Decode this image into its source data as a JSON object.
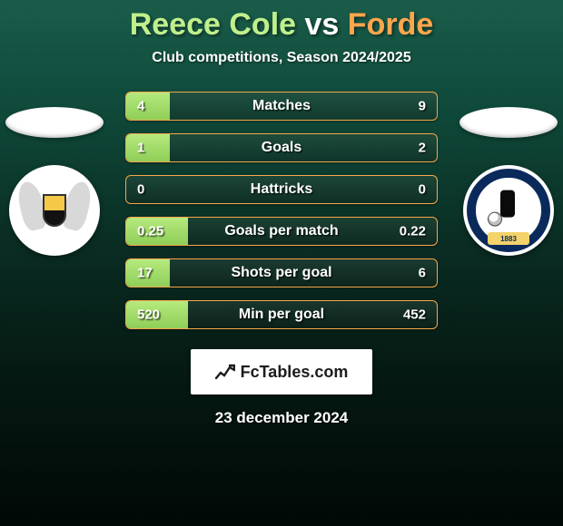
{
  "title": {
    "player1": "Reece Cole",
    "vs": "vs",
    "player2": "Forde"
  },
  "subtitle": "Club competitions, Season 2024/2025",
  "club_right_year": "1883",
  "colors": {
    "player1": "#c0f08c",
    "player2": "#ffa64d",
    "bar_left_top": "#b6ea7e",
    "bar_left_bottom": "#8fce58",
    "bar_right_top": "#f9b763",
    "bar_right_bottom": "#f09a38",
    "bar_border": "#f5a84a",
    "bg_top": "#1a5c4a",
    "bg_bottom": "#010805"
  },
  "stats": [
    {
      "label": "Matches",
      "left_val": "4",
      "right_val": "9",
      "left_pct": 14,
      "right_pct": 0
    },
    {
      "label": "Goals",
      "left_val": "1",
      "right_val": "2",
      "left_pct": 14,
      "right_pct": 0
    },
    {
      "label": "Hattricks",
      "left_val": "0",
      "right_val": "0",
      "left_pct": 0,
      "right_pct": 0
    },
    {
      "label": "Goals per match",
      "left_val": "0.25",
      "right_val": "0.22",
      "left_pct": 20,
      "right_pct": 0
    },
    {
      "label": "Shots per goal",
      "left_val": "17",
      "right_val": "6",
      "left_pct": 14,
      "right_pct": 0
    },
    {
      "label": "Min per goal",
      "left_val": "520",
      "right_val": "452",
      "left_pct": 20,
      "right_pct": 0
    }
  ],
  "brand": "FcTables.com",
  "date": "23 december 2024"
}
